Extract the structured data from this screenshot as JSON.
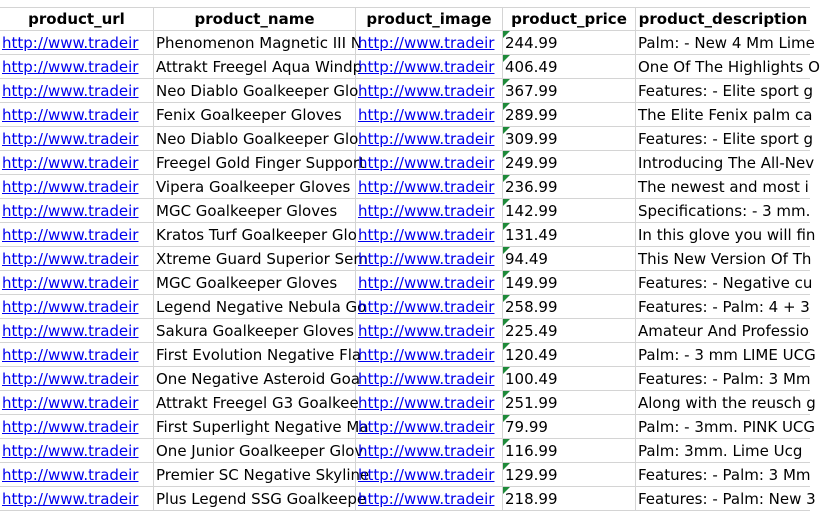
{
  "headers": [
    "product_url",
    "product_name",
    "product_image",
    "product_price",
    "product_description"
  ],
  "rows": [
    {
      "url": "http://www.tradeir",
      "name": "Phenomenon Magnetic III N",
      "image": "http://www.tradeir",
      "price": "244.99",
      "desc": "Palm: - New 4 Mm Lime"
    },
    {
      "url": "http://www.tradeir",
      "name": "Attrakt Freegel Aqua Windp",
      "image": "http://www.tradeir",
      "price": "406.49",
      "desc": "One Of The Highlights O"
    },
    {
      "url": "http://www.tradeir",
      "name": "Neo Diablo Goalkeeper Glo",
      "image": "http://www.tradeir",
      "price": "367.99",
      "desc": "Features: - Elite sport g"
    },
    {
      "url": "http://www.tradeir",
      "name": "Fenix Goalkeeper Gloves",
      "image": "http://www.tradeir",
      "price": "289.99",
      "desc": "The Elite Fenix palm ca"
    },
    {
      "url": "http://www.tradeir",
      "name": "Neo Diablo Goalkeeper Glo",
      "image": "http://www.tradeir",
      "price": "309.99",
      "desc": "Features: - Elite sport g"
    },
    {
      "url": "http://www.tradeir",
      "name": "Freegel Gold Finger Support",
      "image": "http://www.tradeir",
      "price": "249.99",
      "desc": "Introducing The All-Nev"
    },
    {
      "url": "http://www.tradeir",
      "name": "Vipera Goalkeeper Gloves",
      "image": "http://www.tradeir",
      "price": "236.99",
      "desc": "The newest and most i"
    },
    {
      "url": "http://www.tradeir",
      "name": "MGC Goalkeeper Gloves",
      "image": "http://www.tradeir",
      "price": "142.99",
      "desc": "Specifications: - 3 mm."
    },
    {
      "url": "http://www.tradeir",
      "name": "Kratos Turf Goalkeeper Glo",
      "image": "http://www.tradeir",
      "price": "131.49",
      "desc": "In this glove you will fin"
    },
    {
      "url": "http://www.tradeir",
      "name": "Xtreme Guard Superior Sem",
      "image": "http://www.tradeir",
      "price": "94.49",
      "desc": "This New Version Of Th"
    },
    {
      "url": "http://www.tradeir",
      "name": "MGC Goalkeeper Gloves",
      "image": "http://www.tradeir",
      "price": "149.99",
      "desc": "Features: - Negative cu"
    },
    {
      "url": "http://www.tradeir",
      "name": "Legend Negative Nebula Go",
      "image": "http://www.tradeir",
      "price": "258.99",
      "desc": "Features: - Palm: 4 + 3"
    },
    {
      "url": "http://www.tradeir",
      "name": "Sakura Goalkeeper Gloves",
      "image": "http://www.tradeir",
      "price": "225.49",
      "desc": "Amateur And Professio"
    },
    {
      "url": "http://www.tradeir",
      "name": "First Evolution Negative Fla",
      "image": "http://www.tradeir",
      "price": "120.49",
      "desc": "Palm: - 3 mm LIME UCG"
    },
    {
      "url": "http://www.tradeir",
      "name": "One Negative Asteroid Goa",
      "image": "http://www.tradeir",
      "price": "100.49",
      "desc": "Features: - Palm: 3 Mm"
    },
    {
      "url": "http://www.tradeir",
      "name": "Attrakt Freegel G3 Goalkee",
      "image": "http://www.tradeir",
      "price": "251.99",
      "desc": "Along with the reusch g"
    },
    {
      "url": "http://www.tradeir",
      "name": "First Superlight Negative Ma",
      "image": "http://www.tradeir",
      "price": "79.99",
      "desc": "Palm: - 3mm. PINK UCG"
    },
    {
      "url": "http://www.tradeir",
      "name": "One Junior Goalkeeper Glov",
      "image": "http://www.tradeir",
      "price": "116.99",
      "desc": "Palm: 3mm.  Lime Ucg"
    },
    {
      "url": "http://www.tradeir",
      "name": "Premier SC Negative Skyline",
      "image": "http://www.tradeir",
      "price": "129.99",
      "desc": "Features: - Palm: 3 Mm"
    },
    {
      "url": "http://www.tradeir",
      "name": "Plus Legend SSG Goalkeepe",
      "image": "http://www.tradeir",
      "price": "218.99",
      "desc": "Features: - Palm: New 3"
    }
  ],
  "colors": {
    "link": "#0000ee",
    "grid": "#d4d4d4",
    "number_flag": "#1e8a3a"
  }
}
